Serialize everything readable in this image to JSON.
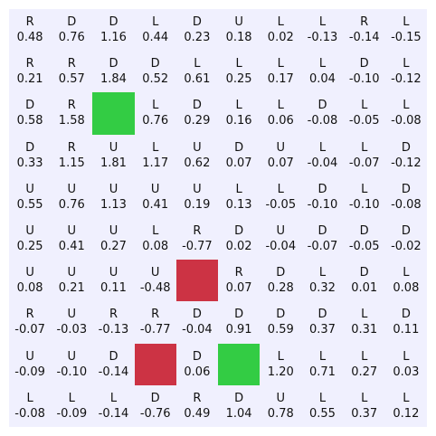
{
  "grid": {
    "rows": 10,
    "cols": 10,
    "colors": {
      "goal": "#33cc44",
      "trap": "#cc3344",
      "background": "#f0f0fe"
    },
    "cells": [
      [
        {
          "a": "R",
          "v": "0.48"
        },
        {
          "a": "D",
          "v": "0.76"
        },
        {
          "a": "D",
          "v": "1.16"
        },
        {
          "a": "L",
          "v": "0.44"
        },
        {
          "a": "D",
          "v": "0.23"
        },
        {
          "a": "U",
          "v": "0.18"
        },
        {
          "a": "L",
          "v": "0.02"
        },
        {
          "a": "L",
          "v": "-0.13"
        },
        {
          "a": "R",
          "v": "-0.14"
        },
        {
          "a": "L",
          "v": "-0.15"
        }
      ],
      [
        {
          "a": "R",
          "v": "0.21"
        },
        {
          "a": "R",
          "v": "0.57"
        },
        {
          "a": "D",
          "v": "1.84"
        },
        {
          "a": "D",
          "v": "0.52"
        },
        {
          "a": "L",
          "v": "0.61"
        },
        {
          "a": "L",
          "v": "0.25"
        },
        {
          "a": "L",
          "v": "0.17"
        },
        {
          "a": "L",
          "v": "0.04"
        },
        {
          "a": "D",
          "v": "-0.10"
        },
        {
          "a": "L",
          "v": "-0.12"
        }
      ],
      [
        {
          "a": "D",
          "v": "0.58"
        },
        {
          "a": "R",
          "v": "1.58"
        },
        {
          "type": "goal"
        },
        {
          "a": "L",
          "v": "0.76"
        },
        {
          "a": "D",
          "v": "0.29"
        },
        {
          "a": "L",
          "v": "0.16"
        },
        {
          "a": "L",
          "v": "0.06"
        },
        {
          "a": "D",
          "v": "-0.08"
        },
        {
          "a": "L",
          "v": "-0.05"
        },
        {
          "a": "L",
          "v": "-0.08"
        }
      ],
      [
        {
          "a": "D",
          "v": "0.33"
        },
        {
          "a": "R",
          "v": "1.15"
        },
        {
          "a": "U",
          "v": "1.81"
        },
        {
          "a": "L",
          "v": "1.17"
        },
        {
          "a": "U",
          "v": "0.62"
        },
        {
          "a": "D",
          "v": "0.07"
        },
        {
          "a": "U",
          "v": "0.07"
        },
        {
          "a": "L",
          "v": "-0.04"
        },
        {
          "a": "L",
          "v": "-0.07"
        },
        {
          "a": "D",
          "v": "-0.12"
        }
      ],
      [
        {
          "a": "U",
          "v": "0.55"
        },
        {
          "a": "U",
          "v": "0.76"
        },
        {
          "a": "U",
          "v": "1.13"
        },
        {
          "a": "U",
          "v": "0.41"
        },
        {
          "a": "U",
          "v": "0.19"
        },
        {
          "a": "L",
          "v": "0.13"
        },
        {
          "a": "L",
          "v": "-0.05"
        },
        {
          "a": "D",
          "v": "-0.10"
        },
        {
          "a": "L",
          "v": "-0.10"
        },
        {
          "a": "D",
          "v": "-0.08"
        }
      ],
      [
        {
          "a": "U",
          "v": "0.25"
        },
        {
          "a": "U",
          "v": "0.41"
        },
        {
          "a": "U",
          "v": "0.27"
        },
        {
          "a": "L",
          "v": "0.08"
        },
        {
          "a": "R",
          "v": "-0.77"
        },
        {
          "a": "D",
          "v": "0.02"
        },
        {
          "a": "U",
          "v": "-0.04"
        },
        {
          "a": "D",
          "v": "-0.07"
        },
        {
          "a": "D",
          "v": "-0.05"
        },
        {
          "a": "D",
          "v": "-0.02"
        }
      ],
      [
        {
          "a": "U",
          "v": "0.08"
        },
        {
          "a": "U",
          "v": "0.21"
        },
        {
          "a": "U",
          "v": "0.11"
        },
        {
          "a": "U",
          "v": "-0.48"
        },
        {
          "type": "trap"
        },
        {
          "a": "R",
          "v": "0.07"
        },
        {
          "a": "D",
          "v": "0.28"
        },
        {
          "a": "L",
          "v": "0.32"
        },
        {
          "a": "D",
          "v": "0.01"
        },
        {
          "a": "L",
          "v": "0.08"
        }
      ],
      [
        {
          "a": "R",
          "v": "-0.07"
        },
        {
          "a": "U",
          "v": "-0.03"
        },
        {
          "a": "R",
          "v": "-0.13"
        },
        {
          "a": "R",
          "v": "-0.77"
        },
        {
          "a": "D",
          "v": "-0.04"
        },
        {
          "a": "D",
          "v": "0.91"
        },
        {
          "a": "D",
          "v": "0.59"
        },
        {
          "a": "D",
          "v": "0.37"
        },
        {
          "a": "L",
          "v": "0.31"
        },
        {
          "a": "D",
          "v": "0.11"
        }
      ],
      [
        {
          "a": "U",
          "v": "-0.09"
        },
        {
          "a": "U",
          "v": "-0.10"
        },
        {
          "a": "D",
          "v": "-0.14"
        },
        {
          "type": "trap"
        },
        {
          "a": "D",
          "v": "0.06"
        },
        {
          "type": "goal"
        },
        {
          "a": "L",
          "v": "1.20"
        },
        {
          "a": "L",
          "v": "0.71"
        },
        {
          "a": "L",
          "v": "0.27"
        },
        {
          "a": "L",
          "v": "0.03"
        }
      ],
      [
        {
          "a": "L",
          "v": "-0.08"
        },
        {
          "a": "L",
          "v": "-0.09"
        },
        {
          "a": "L",
          "v": "-0.14"
        },
        {
          "a": "D",
          "v": "-0.76"
        },
        {
          "a": "R",
          "v": "0.49"
        },
        {
          "a": "D",
          "v": "1.04"
        },
        {
          "a": "U",
          "v": "0.78"
        },
        {
          "a": "L",
          "v": "0.55"
        },
        {
          "a": "L",
          "v": "0.37"
        },
        {
          "a": "L",
          "v": "0.12"
        }
      ]
    ]
  }
}
